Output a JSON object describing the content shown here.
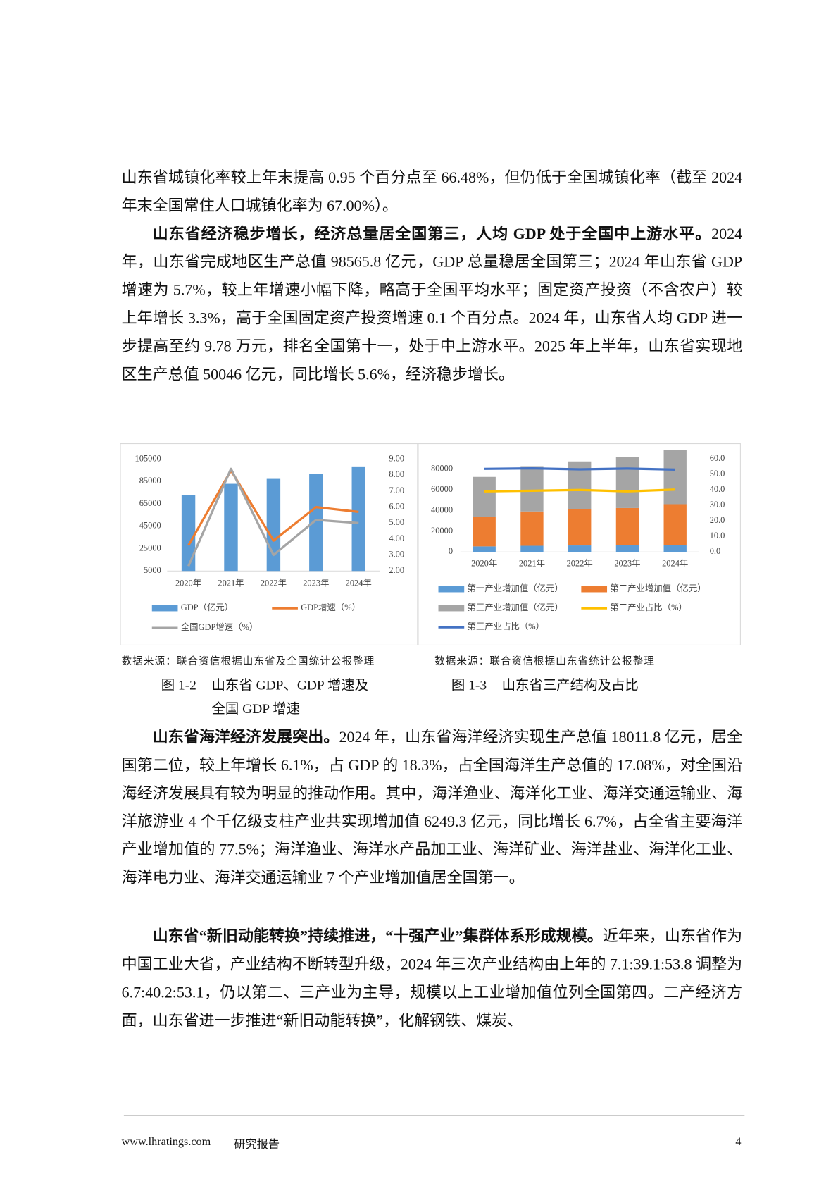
{
  "paragraphs": [
    {
      "text": "山东省城镇化率较上年末提高 0.95 个百分点至 66.48%，但仍低于全国城镇化率（截至 2024 年末全国常住人口城镇化率为 67.00%）。"
    },
    {
      "lead": "山东省经济稳步增长，经济总量居全国第三，人均 GDP 处于全国中上游水平。",
      "text": "2024 年，山东省完成地区生产总值 98565.8 亿元，GDP 总量稳居全国第三；2024 年山东省 GDP 增速为 5.7%，较上年增速小幅下降，略高于全国平均水平；固定资产投资（不含农户）较上年增长 3.3%，高于全国固定资产投资增速 0.1 个百分点。2024 年，山东省人均 GDP 进一步提高至约 9.78 万元，排名全国第十一，处于中上游水平。2025 年上半年，山东省实现地区生产总值 50046 亿元，同比增长 5.6%，经济稳步增长。"
    },
    {
      "lead": "山东省海洋经济发展突出。",
      "text": "2024 年，山东省海洋经济实现生产总值 18011.8 亿元，居全国第二位，较上年增长 6.1%，占 GDP 的 18.3%，占全国海洋生产总值的 17.08%，对全国沿海经济发展具有较为明显的推动作用。其中，海洋渔业、海洋化工业、海洋交通运输业、海洋旅游业 4 个千亿级支柱产业共实现增加值 6249.3 亿元，同比增长 6.7%，占全省主要海洋产业增加值的 77.5%；海洋渔业、海洋水产品加工业、海洋矿业、海洋盐业、海洋化工业、海洋电力业、海洋交通运输业 7 个产业增加值居全国第一。"
    },
    {
      "lead": "山东省“新旧动能转换”持续推进，“十强产业”集群体系形成规模。",
      "text": "近年来，山东省作为中国工业大省，产业结构不断转型升级，2024 年三次产业结构由上年的 7.1:39.1:53.8 调整为 6.7:40.2:53.1，仍以第二、三产业为主导，规模以上工业增加值位列全国第四。二产经济方面，山东省进一步推进“新旧动能转换”，化解钢铁、煤炭、"
    }
  ],
  "chart_data": [
    {
      "type": "bar",
      "categories": [
        "2020年",
        "2021年",
        "2022年",
        "2023年",
        "2024年"
      ],
      "series": [
        {
          "name": "GDP（亿元）",
          "color": "#5b9bd5",
          "values": [
            73000,
            83000,
            87400,
            92000,
            98565.8
          ]
        },
        {
          "name": "GDP增速（%）",
          "color": "#ed7d31",
          "axis": "y2",
          "values": [
            3.6,
            8.3,
            3.9,
            6.0,
            5.7
          ]
        },
        {
          "name": "全国GDP增速（%）",
          "color": "#a5a5a5",
          "axis": "y2",
          "values": [
            2.3,
            8.4,
            3.0,
            5.2,
            5.0
          ]
        }
      ],
      "ylim": [
        5000,
        105000
      ],
      "yticks": [
        5000,
        25000,
        45000,
        65000,
        85000,
        105000
      ],
      "y2lim": [
        2,
        9
      ],
      "y2ticks": [
        {
          "value": 2,
          "label": "2.00"
        },
        {
          "value": 3,
          "label": "3.00"
        },
        {
          "value": 4,
          "label": "4.00"
        },
        {
          "value": 5,
          "label": "5.00"
        },
        {
          "value": 6,
          "label": "6.00"
        },
        {
          "value": 7,
          "label": "7.00"
        },
        {
          "value": 8,
          "label": "8.00"
        },
        {
          "value": 9,
          "label": "9.00"
        }
      ],
      "grid": false
    },
    {
      "type": "bar",
      "stacked": true,
      "categories": [
        "2020年",
        "2021年",
        "2022年",
        "2023年",
        "2024年"
      ],
      "series": [
        {
          "name": "第一产业增加值（亿元）",
          "color": "#5b9bd5",
          "values": [
            5400,
            6000,
            6300,
            6500,
            6600
          ]
        },
        {
          "name": "第二产业增加值（亿元）",
          "color": "#ed7d31",
          "values": [
            28600,
            33200,
            35000,
            36000,
            39600
          ]
        },
        {
          "name": "第三产业增加值（亿元）",
          "color": "#a5a5a5",
          "values": [
            38600,
            43800,
            46300,
            49600,
            52300
          ]
        },
        {
          "name": "第二产业占比（%）",
          "color": "#ffc000",
          "axis": "y2",
          "values": [
            39.1,
            39.5,
            40.0,
            39.1,
            40.2
          ]
        },
        {
          "name": "第三产业占比（%）",
          "color": "#4472c4",
          "axis": "y2",
          "values": [
            53.6,
            53.9,
            53.3,
            53.8,
            53.1
          ]
        }
      ],
      "ylim": [
        0,
        90000
      ],
      "yticks": [
        0,
        20000,
        40000,
        60000,
        80000
      ],
      "y2lim": [
        0,
        60
      ],
      "y2ticks": [
        {
          "value": 0,
          "label": "0.0"
        },
        {
          "value": 10,
          "label": "10.0"
        },
        {
          "value": 20,
          "label": "20.0"
        },
        {
          "value": 30,
          "label": "30.0"
        },
        {
          "value": 40,
          "label": "40.0"
        },
        {
          "value": 50,
          "label": "50.0"
        },
        {
          "value": 60,
          "label": "60.0"
        }
      ],
      "grid": false
    }
  ],
  "figures": [
    {
      "source": "数据来源：联合资信根据山东省及全国统计公报整理",
      "number": "图 1-2",
      "caption": "山东省 GDP、GDP 增速及全国 GDP 增速"
    },
    {
      "source": "数据来源：联合资信根据山东省统计公报整理",
      "number": "图 1-3",
      "caption": "山东省三产结构及占比"
    }
  ],
  "footer": {
    "website": "www.lhratings.com",
    "label": "研究报告",
    "page": "4"
  }
}
